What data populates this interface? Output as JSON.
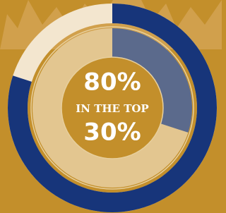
{
  "chart_data": {
    "type": "donut",
    "values": [
      80,
      30
    ],
    "value_labels": [
      "80%",
      "30%"
    ],
    "caption": "IN THE TOP",
    "colors": [
      "#17357a",
      "#5b6a8c"
    ],
    "rest_colors": [
      "#f3e6cf",
      "#e3c690"
    ],
    "max": 100
  }
}
